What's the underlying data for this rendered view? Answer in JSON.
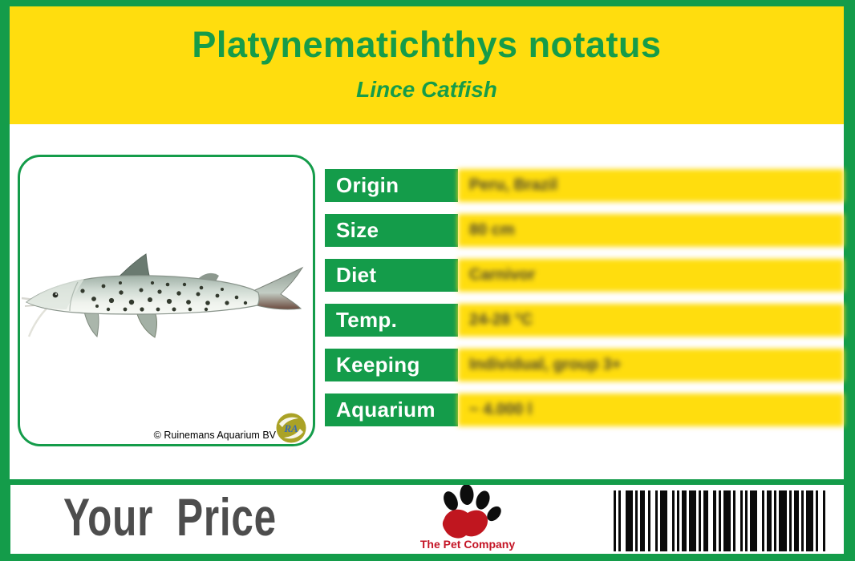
{
  "header": {
    "title": "Platynematichthys notatus",
    "subtitle": "Lince Catfish"
  },
  "photo": {
    "copyright": "© Ruinemans Aquarium BV",
    "supplier_logo_text": "RA"
  },
  "info_table": {
    "rows": [
      {
        "label": "Origin",
        "value": "Peru, Brazil"
      },
      {
        "label": "Size",
        "value": "80 cm"
      },
      {
        "label": "Diet",
        "value": "Carnivor"
      },
      {
        "label": "Temp.",
        "value": "24-28 °C"
      },
      {
        "label": "Keeping",
        "value": "Individual, group 3+"
      },
      {
        "label": "Aquarium",
        "value": "~ 4.000 l"
      }
    ]
  },
  "footer": {
    "price_label": "Your  Price",
    "company_name": "The Pet Company"
  },
  "colors": {
    "brand_green": "#149C4A",
    "brand_yellow": "#FFDD0E",
    "title_green": "#169C49",
    "price_text_gray": "#4D4D4D",
    "company_red": "#C41425",
    "barcode_black": "#0A0A0A"
  },
  "barcode": {
    "total_width": 265,
    "units": [
      1,
      1,
      1,
      2,
      3,
      1,
      1,
      1,
      2,
      1,
      1,
      2,
      1,
      1,
      3,
      2,
      1,
      1,
      1,
      1,
      2,
      1,
      3,
      1,
      1,
      1,
      2,
      2,
      1,
      1,
      1,
      1,
      3,
      1,
      1,
      2,
      1,
      1,
      1,
      1,
      3,
      2,
      1,
      1,
      2,
      1,
      1,
      1,
      3,
      1,
      1,
      1,
      2,
      1,
      1,
      1,
      3,
      1,
      1,
      2,
      1
    ]
  }
}
